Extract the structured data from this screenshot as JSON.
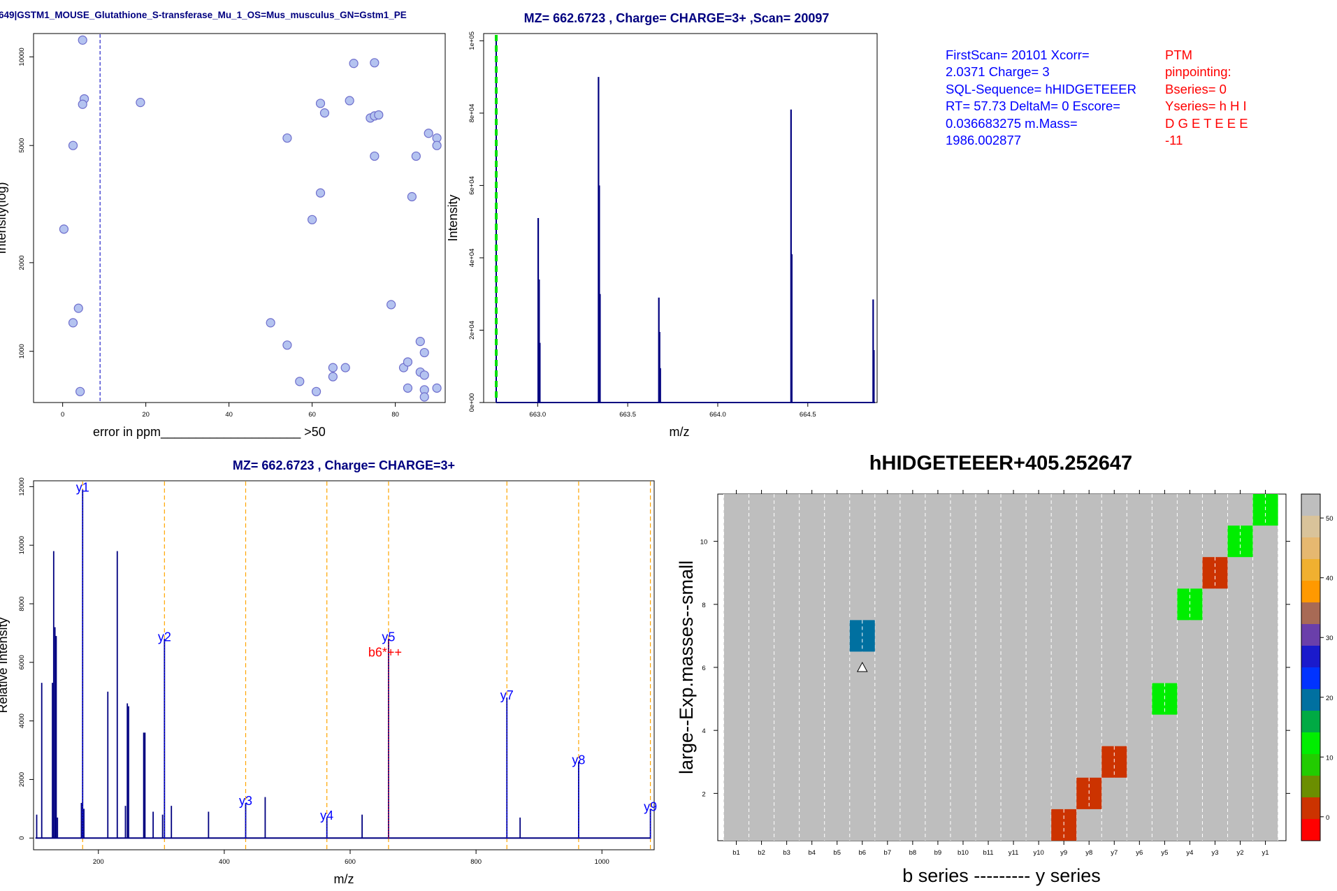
{
  "info": {
    "blue_text": "FirstScan= 20101 Xcorr=\n2.0371 Charge= 3\nSQL-Sequence= hHIDGETEEER\nRT= 57.73 DeltaM= 0 Escore=\n0.036683275 m.Mass=\n1986.002877",
    "red_text": "PTM\npinpointing:\nBseries= 0\nYseries= h H I\nD G E T E E E\n-11",
    "blue_color": "#0000ff",
    "red_color": "#ff0000"
  },
  "chart_data": [
    {
      "id": "error_scatter",
      "type": "scatter",
      "title": "649|GSTM1_MOUSE_Glutathione_S-transferase_Mu_1_OS=Mus_musculus_GN=Gstm1_PE",
      "xlabel": "error in ppm____________________ >50",
      "ylabel": "Intensity(log)",
      "xlim": [
        -7,
        92
      ],
      "ylim": [
        670,
        12000
      ],
      "y_scale": "log",
      "x_ticks": [
        0,
        20,
        40,
        60,
        80
      ],
      "y_ticks": [
        1000,
        2000,
        5000,
        10000
      ],
      "vline_x": 9,
      "vline_color": "#3333cc",
      "point_fill": "#b4c3f0",
      "point_stroke": "#6e6ecc",
      "x": [
        4.8,
        5.2,
        4.8,
        2.5,
        0.3,
        18.7,
        3.8,
        2.5,
        4.2,
        50,
        54,
        57,
        61,
        65,
        65,
        68,
        54,
        60,
        62,
        62,
        63,
        69,
        70,
        74,
        75,
        75,
        75,
        76,
        79,
        82,
        83,
        83,
        84,
        85,
        86,
        86,
        87,
        87,
        87,
        88,
        90,
        90,
        90,
        87
      ],
      "y": [
        11400,
        7200,
        6900,
        5000,
        2600,
        7000,
        1400,
        1250,
        730,
        1250,
        1050,
        790,
        730,
        880,
        820,
        880,
        5300,
        2800,
        6950,
        3450,
        6450,
        7100,
        9500,
        6200,
        9550,
        4600,
        6300,
        6350,
        1440,
        880,
        920,
        750,
        3350,
        4600,
        1080,
        850,
        990,
        830,
        740,
        5500,
        5300,
        5000,
        750,
        700
      ]
    },
    {
      "id": "precursor_spectrum",
      "type": "line",
      "title": "MZ= 662.6723 , Charge= CHARGE=3+ ,Scan= 20097",
      "xlabel": "m/z",
      "ylabel": "Intensity",
      "xlim": [
        662.7,
        664.885
      ],
      "ylim": [
        0,
        102000
      ],
      "x_ticks": [
        663.0,
        663.5,
        664.0,
        664.5
      ],
      "x_tick_labels": [
        "663.0",
        "663.5",
        "664.0",
        "664.5"
      ],
      "y_ticks": [
        0,
        20000,
        40000,
        60000,
        80000,
        100000
      ],
      "y_tick_labels": [
        "0e+00",
        "2e+04",
        "4e+04",
        "6e+04",
        "8e+04",
        "1e+05"
      ],
      "line_color": "#000080",
      "marker_x": 662.672,
      "marker_color": "#00e000",
      "peaks": [
        {
          "x": 663.003,
          "y": 51000
        },
        {
          "x": 663.008,
          "y": 34000
        },
        {
          "x": 663.012,
          "y": 16500
        },
        {
          "x": 663.338,
          "y": 90000
        },
        {
          "x": 663.342,
          "y": 60000
        },
        {
          "x": 663.346,
          "y": 30000
        },
        {
          "x": 663.673,
          "y": 29000
        },
        {
          "x": 663.677,
          "y": 19500
        },
        {
          "x": 663.681,
          "y": 9500
        },
        {
          "x": 664.407,
          "y": 81000
        },
        {
          "x": 664.411,
          "y": 41000
        },
        {
          "x": 664.863,
          "y": 28500
        },
        {
          "x": 664.867,
          "y": 14500
        }
      ]
    },
    {
      "id": "fragment_spectrum",
      "type": "bar",
      "title": "MZ= 662.6723 , Charge= CHARGE=3+",
      "xlabel": "m/z",
      "ylabel": "Relative Intensity",
      "xlim": [
        97,
        1083
      ],
      "ylim": [
        -400,
        12200
      ],
      "x_ticks": [
        200,
        400,
        600,
        800,
        1000
      ],
      "y_ticks": [
        0,
        2000,
        4000,
        6000,
        8000,
        10000,
        12000
      ],
      "line_color": "#000080",
      "ion_line_color": "#ffa500",
      "peaks": [
        {
          "x": 102,
          "y": 800
        },
        {
          "x": 110,
          "y": 5300
        },
        {
          "x": 127,
          "y": 5300
        },
        {
          "x": 129,
          "y": 9800
        },
        {
          "x": 131,
          "y": 7200
        },
        {
          "x": 133,
          "y": 6900
        },
        {
          "x": 135,
          "y": 700
        },
        {
          "x": 173,
          "y": 1200
        },
        {
          "x": 175,
          "y": 11900
        },
        {
          "x": 177,
          "y": 1000
        },
        {
          "x": 215,
          "y": 5000
        },
        {
          "x": 230,
          "y": 9800
        },
        {
          "x": 243,
          "y": 1100
        },
        {
          "x": 246,
          "y": 4600
        },
        {
          "x": 248,
          "y": 4500
        },
        {
          "x": 272,
          "y": 3600
        },
        {
          "x": 274,
          "y": 3600
        },
        {
          "x": 287,
          "y": 900
        },
        {
          "x": 302,
          "y": 800
        },
        {
          "x": 305,
          "y": 6800
        },
        {
          "x": 316,
          "y": 1100
        },
        {
          "x": 375,
          "y": 900
        },
        {
          "x": 434,
          "y": 1200
        },
        {
          "x": 465,
          "y": 1400
        },
        {
          "x": 563,
          "y": 700
        },
        {
          "x": 619,
          "y": 800
        },
        {
          "x": 661,
          "y": 6800
        },
        {
          "x": 849,
          "y": 4800
        },
        {
          "x": 870,
          "y": 700
        },
        {
          "x": 963,
          "y": 2600
        },
        {
          "x": 1077,
          "y": 1000
        }
      ],
      "ions": [
        {
          "label": "y1",
          "x": 175,
          "y": 11900,
          "color": "#0000ff"
        },
        {
          "label": "y2",
          "x": 305,
          "y": 6800,
          "color": "#0000ff"
        },
        {
          "label": "y3",
          "x": 434,
          "y": 1200,
          "color": "#0000ff"
        },
        {
          "label": "y4",
          "x": 563,
          "y": 700,
          "color": "#0000ff"
        },
        {
          "label": "y5",
          "x": 661,
          "y": 6800,
          "color": "#0000ff"
        },
        {
          "label": "b6*++",
          "x": 661,
          "y": 6800,
          "color": "#ff0000"
        },
        {
          "label": "y7",
          "x": 849,
          "y": 4800,
          "color": "#0000ff"
        },
        {
          "label": "y8",
          "x": 963,
          "y": 2600,
          "color": "#0000ff"
        },
        {
          "label": "y9",
          "x": 1077,
          "y": 1000,
          "color": "#0000ff"
        }
      ]
    },
    {
      "id": "ion_heatmap",
      "type": "heatmap",
      "title": "hHIDGETEEER+405.252647",
      "xlabel": "b series --------- y series",
      "ylabel": "large--Exp.masses--small",
      "x_categories": [
        "b1",
        "b2",
        "b3",
        "b4",
        "b5",
        "b6",
        "b7",
        "b8",
        "b9",
        "b10",
        "b11",
        "y11",
        "y10",
        "y9",
        "y8",
        "y7",
        "y6",
        "y5",
        "y4",
        "y3",
        "y2",
        "y1"
      ],
      "ylim": [
        0.5,
        11.5
      ],
      "y_ticks": [
        2,
        4,
        6,
        8,
        10
      ],
      "background_color": "#bebebe",
      "cells": [
        {
          "col": "y1",
          "row": 11,
          "value": 12
        },
        {
          "col": "y2",
          "row": 10,
          "value": 12
        },
        {
          "col": "y3",
          "row": 9,
          "value": 2
        },
        {
          "col": "y4",
          "row": 8,
          "value": 12
        },
        {
          "col": "b6",
          "row": 7,
          "value": 20
        },
        {
          "col": "y5",
          "row": 5,
          "value": 12
        },
        {
          "col": "y7",
          "row": 3,
          "value": 2
        },
        {
          "col": "y8",
          "row": 2,
          "value": 0
        },
        {
          "col": "y9",
          "row": 1,
          "value": 2
        }
      ],
      "marker": {
        "col": "b6",
        "row": 6,
        "symbol": "triangle"
      },
      "colorbar": {
        "range": [
          -4,
          54
        ],
        "ticks": [
          0,
          10,
          20,
          30,
          40,
          50
        ],
        "colors": [
          "#ff0000",
          "#cc3300",
          "#6b8e00",
          "#22cc00",
          "#00ee00",
          "#00aa44",
          "#0070a0",
          "#0033ff",
          "#1a1acc",
          "#6a3faa",
          "#a86a55",
          "#ff9900",
          "#f0b030",
          "#e6b870",
          "#d9c39a",
          "#bebebe"
        ]
      }
    }
  ]
}
